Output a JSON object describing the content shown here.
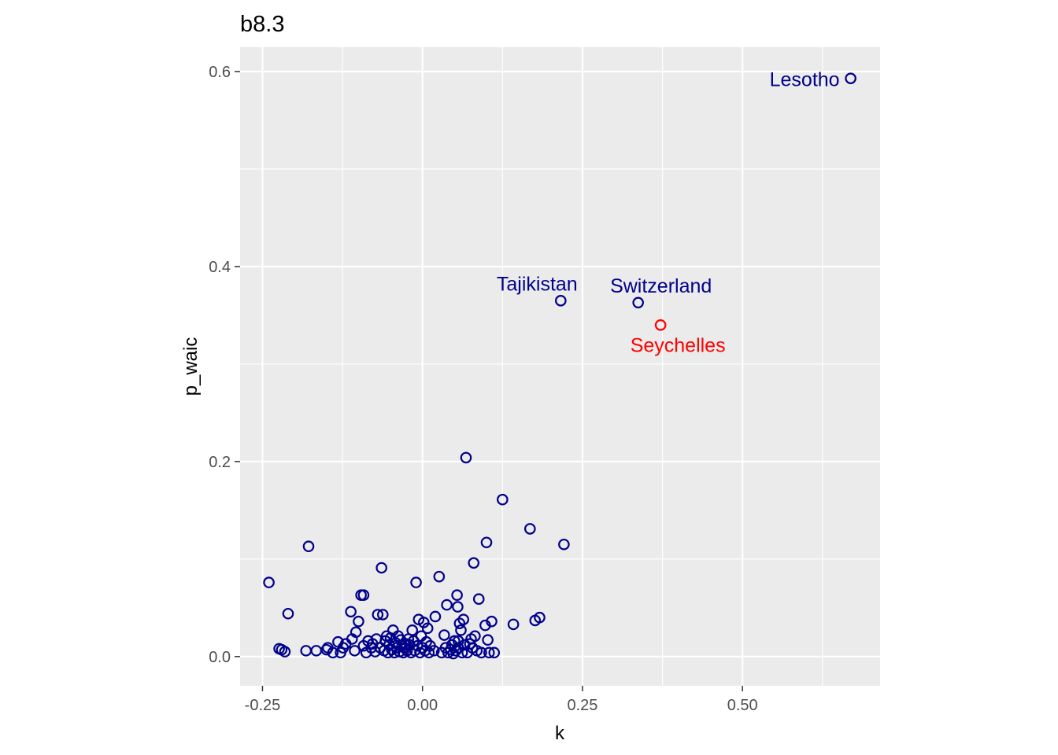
{
  "chart_data": {
    "type": "scatter",
    "title": "b8.3",
    "xlabel": "k",
    "ylabel": "p_waic",
    "xlim": [
      -0.285,
      0.715
    ],
    "ylim": [
      -0.03,
      0.625
    ],
    "x_ticks": [
      -0.25,
      0.0,
      0.25,
      0.5
    ],
    "x_tick_labels": [
      "-0.25",
      "0.00",
      "0.25",
      "0.50"
    ],
    "y_ticks": [
      0.0,
      0.2,
      0.4,
      0.6
    ],
    "y_tick_labels": [
      "0.0",
      "0.2",
      "0.4",
      "0.6"
    ],
    "grid": true,
    "colors": {
      "panel": "#ebebeb",
      "grid_major": "#ffffff",
      "point": "#00008b",
      "highlight": "#ff0000",
      "tick": "#333333"
    },
    "labeled_points": [
      {
        "name": "Lesotho",
        "x": 0.669,
        "y": 0.593,
        "color": "#00008b"
      },
      {
        "name": "Tajikistan",
        "x": 0.216,
        "y": 0.365,
        "color": "#00008b"
      },
      {
        "name": "Switzerland",
        "x": 0.337,
        "y": 0.363,
        "color": "#00008b"
      },
      {
        "name": "Seychelles",
        "x": 0.372,
        "y": 0.34,
        "color": "#ff0000"
      }
    ],
    "points": [
      [
        -0.24,
        0.076
      ],
      [
        -0.178,
        0.113
      ],
      [
        -0.21,
        0.044
      ],
      [
        -0.224,
        0.008
      ],
      [
        -0.22,
        0.007
      ],
      [
        -0.215,
        0.005
      ],
      [
        -0.182,
        0.006
      ],
      [
        -0.166,
        0.006
      ],
      [
        -0.15,
        0.007
      ],
      [
        -0.148,
        0.009
      ],
      [
        -0.14,
        0.004
      ],
      [
        -0.132,
        0.015
      ],
      [
        -0.128,
        0.004
      ],
      [
        -0.124,
        0.009
      ],
      [
        -0.12,
        0.013
      ],
      [
        -0.112,
        0.046
      ],
      [
        -0.11,
        0.018
      ],
      [
        -0.106,
        0.006
      ],
      [
        -0.104,
        0.025
      ],
      [
        -0.1,
        0.036
      ],
      [
        -0.096,
        0.063
      ],
      [
        -0.092,
        0.063
      ],
      [
        -0.092,
        0.011
      ],
      [
        -0.088,
        0.004
      ],
      [
        -0.085,
        0.016
      ],
      [
        -0.08,
        0.009
      ],
      [
        -0.078,
        0.013
      ],
      [
        -0.074,
        0.005
      ],
      [
        -0.072,
        0.018
      ],
      [
        -0.07,
        0.043
      ],
      [
        -0.066,
        0.009
      ],
      [
        -0.064,
        0.091
      ],
      [
        -0.062,
        0.043
      ],
      [
        -0.06,
        0.006
      ],
      [
        -0.058,
        0.016
      ],
      [
        -0.056,
        0.021
      ],
      [
        -0.054,
        0.004
      ],
      [
        -0.052,
        0.012
      ],
      [
        -0.05,
        0.019
      ],
      [
        -0.048,
        0.007
      ],
      [
        -0.046,
        0.027
      ],
      [
        -0.044,
        0.004
      ],
      [
        -0.042,
        0.014
      ],
      [
        -0.04,
        0.009
      ],
      [
        -0.038,
        0.021
      ],
      [
        -0.036,
        0.005
      ],
      [
        -0.034,
        0.017
      ],
      [
        -0.032,
        0.011
      ],
      [
        -0.03,
        0.004
      ],
      [
        -0.028,
        0.009
      ],
      [
        -0.026,
        0.013
      ],
      [
        -0.024,
        0.006
      ],
      [
        -0.022,
        0.018
      ],
      [
        -0.02,
        0.012
      ],
      [
        -0.018,
        0.004
      ],
      [
        -0.016,
        0.027
      ],
      [
        -0.014,
        0.016
      ],
      [
        -0.012,
        0.006
      ],
      [
        -0.01,
        0.076
      ],
      [
        -0.008,
        0.011
      ],
      [
        -0.006,
        0.038
      ],
      [
        -0.004,
        0.004
      ],
      [
        -0.002,
        0.021
      ],
      [
        0.0,
        0.009
      ],
      [
        0.002,
        0.035
      ],
      [
        0.004,
        0.006
      ],
      [
        0.006,
        0.015
      ],
      [
        0.008,
        0.029
      ],
      [
        0.01,
        0.004
      ],
      [
        0.012,
        0.011
      ],
      [
        0.018,
        0.006
      ],
      [
        0.02,
        0.041
      ],
      [
        0.026,
        0.082
      ],
      [
        0.03,
        0.004
      ],
      [
        0.034,
        0.022
      ],
      [
        0.036,
        0.009
      ],
      [
        0.038,
        0.053
      ],
      [
        0.04,
        0.004
      ],
      [
        0.044,
        0.007
      ],
      [
        0.046,
        0.012
      ],
      [
        0.048,
        0.003
      ],
      [
        0.05,
        0.016
      ],
      [
        0.052,
        0.006
      ],
      [
        0.054,
        0.063
      ],
      [
        0.055,
        0.051
      ],
      [
        0.056,
        0.009
      ],
      [
        0.058,
        0.034
      ],
      [
        0.06,
        0.027
      ],
      [
        0.062,
        0.004
      ],
      [
        0.064,
        0.038
      ],
      [
        0.066,
        0.012
      ],
      [
        0.068,
        0.204
      ],
      [
        0.07,
        0.004
      ],
      [
        0.074,
        0.013
      ],
      [
        0.076,
        0.018
      ],
      [
        0.078,
        0.009
      ],
      [
        0.08,
        0.096
      ],
      [
        0.082,
        0.021
      ],
      [
        0.085,
        0.006
      ],
      [
        0.088,
        0.059
      ],
      [
        0.092,
        0.004
      ],
      [
        0.098,
        0.032
      ],
      [
        0.1,
        0.117
      ],
      [
        0.102,
        0.017
      ],
      [
        0.104,
        0.004
      ],
      [
        0.108,
        0.036
      ],
      [
        0.112,
        0.004
      ],
      [
        0.125,
        0.161
      ],
      [
        0.142,
        0.033
      ],
      [
        0.168,
        0.131
      ],
      [
        0.176,
        0.037
      ],
      [
        0.183,
        0.04
      ],
      [
        0.221,
        0.115
      ],
      [
        0.056,
        0.016
      ]
    ]
  }
}
